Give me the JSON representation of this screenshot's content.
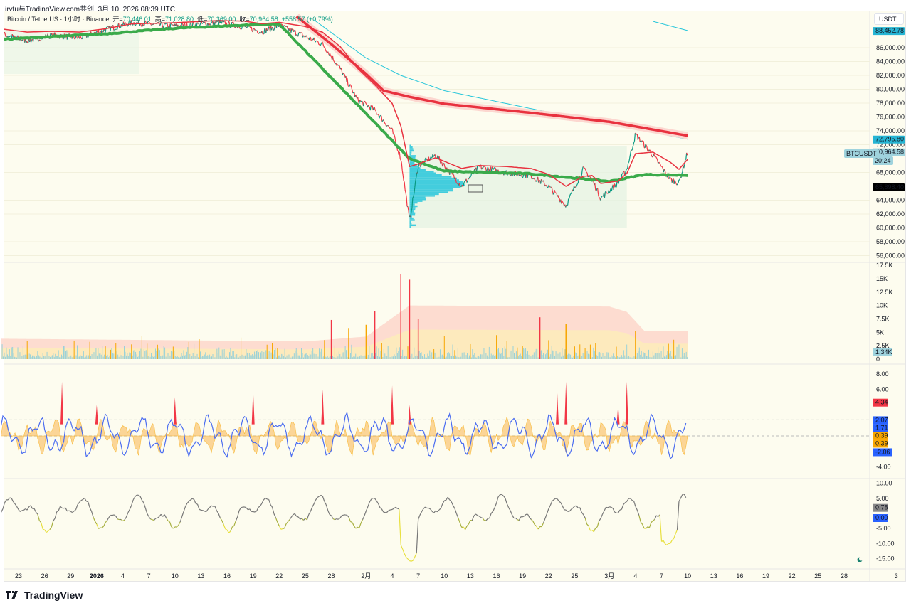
{
  "header": {
    "credit": "irytu与TradingView.com共创, 3月 10, 2026 08:39 UTC",
    "symbol": "Bitcoin / TetherUS · 1小时 · Binance",
    "open_label": "开=",
    "open": "70,446.01",
    "high_label": "高=",
    "high": "71,028.80",
    "low_label": "低=",
    "low": "70,369.00",
    "close_label": "收=",
    "close": "70,964.58",
    "change": "+558.57 (+0.79%)"
  },
  "currency_button": "USDT",
  "symbol_tag": "BTCUSDT",
  "countdown": "20:24",
  "footer": {
    "brand": "TradingView"
  },
  "colors": {
    "bg": "#fdfcef",
    "up": "#089981",
    "down": "#f23645",
    "ma_red": "#e8323f",
    "ma_green": "#3aaa4a",
    "cyan": "#26c6da",
    "blue": "#2962ff",
    "orange": "#f7a600"
  },
  "chart_data": {
    "type": "line",
    "title": "Bitcoin / TetherUS · 1小时 · Binance",
    "x_ticks": [
      "23",
      "26",
      "29",
      "2026",
      "4",
      "7",
      "10",
      "13",
      "16",
      "19",
      "22",
      "25",
      "28",
      "2月",
      "4",
      "7",
      "10",
      "13",
      "16",
      "19",
      "22",
      "25",
      "3月",
      "4",
      "7",
      "10",
      "13",
      "16",
      "19",
      "22",
      "25",
      "28",
      "3"
    ],
    "x_tick_dates": [
      "2025-12-23",
      "2025-12-26",
      "2025-12-29",
      "2026-01-01",
      "2026-01-04",
      "2026-01-07",
      "2026-01-10",
      "2026-01-13",
      "2026-01-16",
      "2026-01-19",
      "2026-01-22",
      "2026-01-25",
      "2026-01-28",
      "2026-02-01",
      "2026-02-04",
      "2026-02-07",
      "2026-02-10",
      "2026-02-13",
      "2026-02-16",
      "2026-02-19",
      "2026-02-22",
      "2026-02-25",
      "2026-03-01",
      "2026-03-04",
      "2026-03-07",
      "2026-03-10",
      "2026-03-13",
      "2026-03-16",
      "2026-03-19",
      "2026-03-22",
      "2026-03-25",
      "2026-03-28",
      "2026-04-03"
    ],
    "price_pane": {
      "ylabel": "USDT",
      "y_ticks": [
        "86,000.00",
        "84,000.00",
        "82,000.00",
        "80,000.00",
        "78,000.00",
        "76,000.00",
        "74,000.00",
        "72,000.00",
        "68,000.00",
        "64,000.00",
        "62,000.00",
        "60,000.00",
        "58,000.00",
        "56,000.00"
      ],
      "y_tick_values": [
        86000,
        84000,
        82000,
        80000,
        78000,
        76000,
        74000,
        72000,
        68000,
        64000,
        62000,
        60000,
        58000,
        56000
      ],
      "labels": [
        {
          "text": "88,452.78",
          "value": 88452.78,
          "color": "#26b5d4"
        },
        {
          "text": "72,795.80",
          "value": 72795.8,
          "color": "#26b5d4"
        },
        {
          "text": "70,964.58",
          "value": 70964.58,
          "color": "#9fd3dd"
        },
        {
          "text": "65,898.40",
          "value": 65898.4,
          "color": "#000000"
        }
      ],
      "series": [
        {
          "name": "price",
          "points": [
            [
              "2025-12-21",
              88000
            ],
            [
              "2025-12-24",
              87000
            ],
            [
              "2025-12-27",
              87800
            ],
            [
              "2025-12-30",
              87400
            ],
            [
              "2026-01-02",
              88600
            ],
            [
              "2026-01-05",
              89600
            ],
            [
              "2026-01-10",
              89100
            ],
            [
              "2026-01-15",
              89600
            ],
            [
              "2026-01-18",
              89000
            ],
            [
              "2026-01-20",
              88300
            ],
            [
              "2026-01-22",
              89200
            ],
            [
              "2026-01-25",
              87600
            ],
            [
              "2026-01-27",
              86500
            ],
            [
              "2026-01-29",
              83000
            ],
            [
              "2026-01-31",
              78500
            ],
            [
              "2026-02-02",
              77000
            ],
            [
              "2026-02-04",
              74000
            ],
            [
              "2026-02-05",
              70000
            ],
            [
              "2026-02-06",
              61000
            ],
            [
              "2026-02-07",
              69000
            ],
            [
              "2026-02-09",
              70500
            ],
            [
              "2026-02-12",
              66000
            ],
            [
              "2026-02-14",
              68800
            ],
            [
              "2026-02-17",
              68000
            ],
            [
              "2026-02-20",
              67500
            ],
            [
              "2026-02-22",
              66000
            ],
            [
              "2026-02-24",
              63200
            ],
            [
              "2026-02-26",
              68500
            ],
            [
              "2026-02-27",
              67000
            ],
            [
              "2026-02-28",
              64300
            ],
            [
              "2026-03-02",
              66500
            ],
            [
              "2026-03-03",
              68500
            ],
            [
              "2026-03-04",
              73500
            ],
            [
              "2026-03-06",
              70500
            ],
            [
              "2026-03-08",
              67000
            ],
            [
              "2026-03-09",
              66500
            ],
            [
              "2026-03-10",
              70964.58
            ]
          ]
        },
        {
          "name": "ma-red-slow",
          "points": [
            [
              "2026-01-24",
              90500
            ],
            [
              "2026-01-28",
              86500
            ],
            [
              "2026-02-01",
              82200
            ],
            [
              "2026-02-03",
              79800
            ],
            [
              "2026-02-06",
              78900
            ],
            [
              "2026-02-10",
              77900
            ],
            [
              "2026-02-20",
              76600
            ],
            [
              "2026-03-01",
              75300
            ],
            [
              "2026-03-10",
              73300
            ]
          ]
        },
        {
          "name": "ma-cyan",
          "points": [
            [
              "2026-01-26",
              90000
            ],
            [
              "2026-02-01",
              84500
            ],
            [
              "2026-02-05",
              82000
            ],
            [
              "2026-02-10",
              79800
            ],
            [
              "2026-02-20",
              77200
            ],
            [
              "2026-03-01",
              75000
            ],
            [
              "2026-03-10",
              72795.8
            ]
          ]
        },
        {
          "name": "ma-green",
          "points": [
            [
              "2025-12-21",
              87200
            ],
            [
              "2026-01-02",
              88000
            ],
            [
              "2026-01-10",
              88800
            ],
            [
              "2026-01-19",
              89300
            ],
            [
              "2026-01-22",
              89400
            ],
            [
              "2026-02-06",
              70000
            ],
            [
              "2026-02-10",
              68200
            ],
            [
              "2026-02-20",
              67800
            ],
            [
              "2026-03-01",
              66700
            ],
            [
              "2026-03-05",
              67700
            ],
            [
              "2026-03-10",
              67600
            ]
          ]
        }
      ]
    },
    "volume_pane": {
      "y_ticks": [
        "17.5K",
        "15K",
        "12.5K",
        "10K",
        "7.5K",
        "5K",
        "2.5K",
        "0"
      ],
      "y_tick_values": [
        17500,
        15000,
        12500,
        10000,
        7500,
        5000,
        2500,
        0
      ],
      "last_label": "1.34K",
      "band_points": [
        [
          "2025-12-21",
          3800
        ],
        [
          "2026-01-25",
          3300
        ],
        [
          "2026-02-01",
          4200
        ],
        [
          "2026-02-06",
          10000
        ],
        [
          "2026-03-01",
          9800
        ],
        [
          "2026-03-03",
          8800
        ],
        [
          "2026-03-05",
          5300
        ],
        [
          "2026-03-10",
          5200
        ]
      ],
      "spikes": [
        [
          "2026-01-28",
          7300
        ],
        [
          "2026-01-30",
          5800
        ],
        [
          "2026-02-01",
          6400
        ],
        [
          "2026-02-02",
          8900
        ],
        [
          "2026-02-05",
          15900
        ],
        [
          "2026-02-06",
          14800
        ],
        [
          "2026-02-07",
          7500
        ],
        [
          "2026-02-21",
          7800
        ],
        [
          "2026-02-24",
          6500
        ],
        [
          "2026-03-04",
          5200
        ]
      ]
    },
    "oscillator_pane": {
      "y_ticks": [
        "8.00",
        "6.00",
        "-4.00"
      ],
      "y_tick_values": [
        8,
        6,
        -4
      ],
      "labels": [
        {
          "text": "4.34",
          "value": 4.34,
          "color": "#f23645"
        },
        {
          "text": "2.07",
          "value": 2.07,
          "color": "#2962ff"
        },
        {
          "text": "1.71",
          "value": 1.71,
          "color": "#2962ff"
        },
        {
          "text": "0.39",
          "value": 0.39,
          "color": "#f7a600"
        },
        {
          "text": "0.39",
          "value": 0.39,
          "color": "#f7a600"
        },
        {
          "text": "-2.06",
          "value": -2.06,
          "color": "#2962ff"
        }
      ],
      "spikes": [
        [
          "2025-12-28",
          7
        ],
        [
          "2026-01-01",
          4
        ],
        [
          "2026-01-10",
          5
        ],
        [
          "2026-01-19",
          6
        ],
        [
          "2026-01-27",
          6
        ],
        [
          "2026-02-04",
          6.5
        ],
        [
          "2026-02-06",
          4
        ],
        [
          "2026-02-23",
          5.5
        ],
        [
          "2026-02-24",
          7
        ],
        [
          "2026-03-02",
          4
        ],
        [
          "2026-03-03",
          7
        ]
      ]
    },
    "momentum_pane": {
      "y_ticks": [
        "10.00",
        "5.00",
        "-5.00",
        "-10.00",
        "-15.00"
      ],
      "y_tick_values": [
        10,
        5,
        -5,
        -10,
        -15
      ],
      "labels": [
        {
          "text": "0.78",
          "value": 0.78,
          "color": "#888888"
        },
        {
          "text": "0.00",
          "value": 0,
          "color": "#2962ff"
        }
      ]
    }
  }
}
